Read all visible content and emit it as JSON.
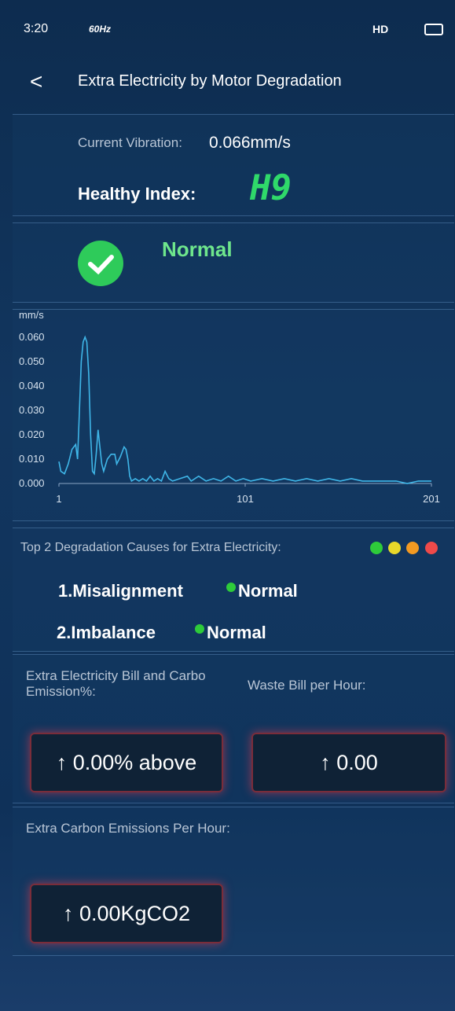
{
  "status_bar": {
    "time": "3:20",
    "refresh": "60Hz",
    "network": "HD"
  },
  "header": {
    "title": "Extra Electricity by Motor Degradation"
  },
  "vibration": {
    "label": "Current Vibration:",
    "value": "0.066mm/s"
  },
  "health": {
    "label": "Healthy Index:",
    "value": "H9"
  },
  "status": {
    "text": "Normal"
  },
  "chart": {
    "type": "line",
    "y_unit": "mm/s",
    "color": "#3fb6e8",
    "xlim": [
      1,
      201
    ],
    "ylim": [
      0,
      0.068
    ],
    "xticks": [
      1,
      101,
      201
    ],
    "yticks": [
      {
        "value": 0,
        "label": "0.000"
      },
      {
        "value": 0.01,
        "label": "0.010"
      },
      {
        "value": 0.02,
        "label": "0.020"
      },
      {
        "value": 0.03,
        "label": "0.030"
      },
      {
        "value": 0.04,
        "label": "0.040"
      },
      {
        "value": 0.05,
        "label": "0.050"
      },
      {
        "value": 0.06,
        "label": "0.060"
      }
    ],
    "x": [
      1,
      2,
      4,
      6,
      8,
      10,
      11,
      12,
      13,
      14,
      15,
      16,
      17,
      18,
      19,
      20,
      21,
      22,
      23,
      24,
      25,
      27,
      29,
      31,
      32,
      34,
      36,
      37,
      38,
      39,
      40,
      42,
      44,
      46,
      48,
      50,
      52,
      54,
      56,
      58,
      60,
      62,
      66,
      70,
      72,
      76,
      80,
      84,
      88,
      92,
      96,
      100,
      104,
      110,
      116,
      122,
      128,
      134,
      140,
      146,
      152,
      158,
      164,
      170,
      176,
      182,
      188,
      194,
      201
    ],
    "values": [
      0.009,
      0.005,
      0.004,
      0.008,
      0.014,
      0.016,
      0.01,
      0.03,
      0.05,
      0.058,
      0.06,
      0.058,
      0.045,
      0.02,
      0.005,
      0.004,
      0.012,
      0.022,
      0.015,
      0.008,
      0.005,
      0.01,
      0.012,
      0.012,
      0.008,
      0.011,
      0.015,
      0.014,
      0.01,
      0.003,
      0.001,
      0.002,
      0.001,
      0.002,
      0.001,
      0.003,
      0.001,
      0.002,
      0.001,
      0.005,
      0.002,
      0.001,
      0.002,
      0.003,
      0.001,
      0.003,
      0.001,
      0.002,
      0.001,
      0.003,
      0.001,
      0.002,
      0.001,
      0.002,
      0.001,
      0.002,
      0.001,
      0.002,
      0.001,
      0.002,
      0.001,
      0.002,
      0.001,
      0.001,
      0.001,
      0.001,
      0.0,
      0.001,
      0.001
    ]
  },
  "causes": {
    "title": "Top 2 Degradation Causes for Extra Electricity:",
    "items": [
      {
        "name": "1.Misalignment",
        "status": "Normal"
      },
      {
        "name": "2.Imbalance",
        "status": "Normal"
      }
    ]
  },
  "bill": {
    "percent_label": "Extra Electricity Bill and Carbo Emission%:",
    "percent_value": "↑ 0.00% above",
    "waste_label": "Waste Bill per Hour:",
    "waste_value": "↑ 0.00"
  },
  "carbon": {
    "label": "Extra Carbon Emissions Per Hour:",
    "value": "↑ 0.00KgCO2"
  }
}
